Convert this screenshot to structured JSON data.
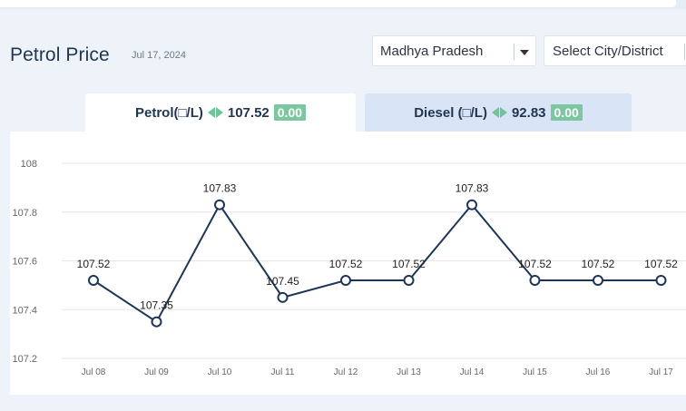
{
  "header": {
    "title": "Petrol Price",
    "date": "Jul 17, 2024"
  },
  "filters": {
    "state": "Madhya Pradesh",
    "city_placeholder": "Select City/District"
  },
  "tabs": [
    {
      "label": "Petrol(□/L)",
      "price": "107.52",
      "change": "0.00"
    },
    {
      "label": "Diesel (□/L)",
      "price": "92.83",
      "change": "0.00"
    }
  ],
  "colors": {
    "line": "#1d3557",
    "badge": "#7cc7a0",
    "arrow": "#6fc59a",
    "active_tab": "#ffffff",
    "inactive_tab": "#d9e5f6"
  },
  "chart_data": {
    "type": "line",
    "categories": [
      "Jul 08",
      "Jul 09",
      "Jul 10",
      "Jul 11",
      "Jul 12",
      "Jul 13",
      "Jul 14",
      "Jul 15",
      "Jul 16",
      "Jul 17"
    ],
    "values": [
      107.52,
      107.35,
      107.83,
      107.45,
      107.52,
      107.52,
      107.83,
      107.52,
      107.52,
      107.52
    ],
    "data_labels": [
      "107.52",
      "107.35",
      "107.83",
      "107.45",
      "107.52",
      "107.52",
      "107.83",
      "107.52",
      "107.52",
      "107.52"
    ],
    "yticks": [
      "108",
      "107.8",
      "107.6",
      "107.4",
      "107.2"
    ],
    "ytick_values": [
      108,
      107.8,
      107.6,
      107.4,
      107.2
    ],
    "ylim": [
      107.2,
      108
    ],
    "grid": true
  }
}
